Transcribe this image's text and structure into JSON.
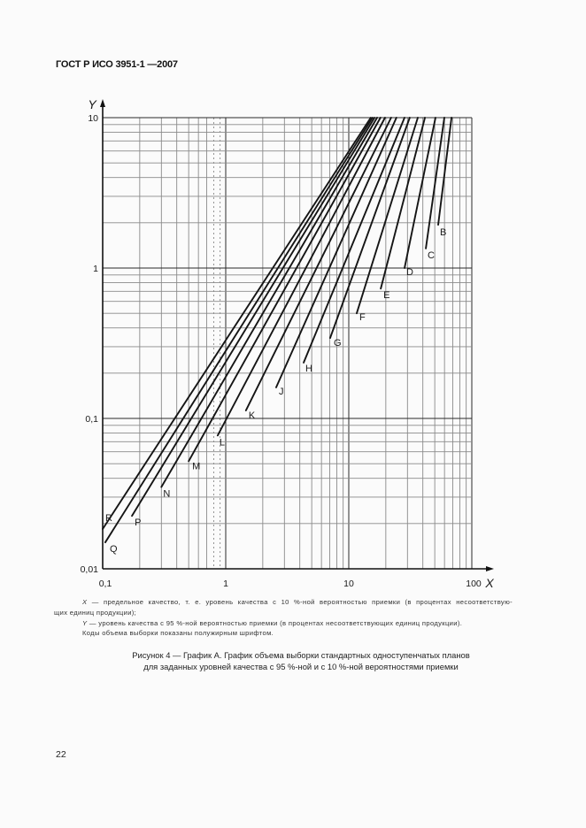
{
  "header": {
    "title": "ГОСТ Р ИСО 3951-1 —2007"
  },
  "notes": {
    "line1": {
      "var": "X",
      "text": " — предельное качество, т. е. уровень качества с 10 %-ной вероятностью приемки (в процентах несоответствую-"
    },
    "line2": {
      "text": "щих единиц продукции);"
    },
    "line3": {
      "var": "Y",
      "text": " — уровень качества с 95 %-ной вероятностью приемки (в процентах несоответствующих единиц продукции)."
    },
    "line4": {
      "text": "Коды объема выборки показаны полужирным шрифтом."
    }
  },
  "caption": {
    "line1": "Рисунок 4 — График А. График объема выборки стандартных одноступенчатых планов",
    "line2": "для заданных уровней качества с 95 %-ной и с 10 %-ной вероятностями приемки"
  },
  "page_number": "22",
  "colors": {
    "line": "#151515",
    "grid_major": "#2a2a2a",
    "grid_minor": "#8a8a8a",
    "axis": "#111111",
    "text": "#1a1a1a"
  },
  "chart_data": {
    "type": "line",
    "title": "",
    "xlabel": "X",
    "ylabel": "Y",
    "xscale": "log",
    "yscale": "log",
    "xlim": [
      0.1,
      100
    ],
    "ylim": [
      0.01,
      10
    ],
    "xticks": [
      0.1,
      1,
      10,
      100
    ],
    "xtick_labels": [
      "0,1",
      "1",
      "10",
      "100"
    ],
    "yticks": [
      0.01,
      0.1,
      1,
      10
    ],
    "ytick_labels": [
      "0,01",
      "0,1",
      "1",
      "10"
    ],
    "grid": true,
    "legend": "inline letter labels at the lower end of each line",
    "series": [
      {
        "name": "R",
        "x": [
          0.1,
          15.1
        ],
        "y": [
          0.0184,
          10
        ],
        "label_dx": 3,
        "label_dy": -13
      },
      {
        "name": "Q",
        "x": [
          0.105,
          15.6
        ],
        "y": [
          0.015,
          10
        ],
        "label_dx": 5,
        "label_dy": 7
      },
      {
        "name": "P",
        "x": [
          0.173,
          16.2
        ],
        "y": [
          0.0225,
          10
        ],
        "label_dx": 3,
        "label_dy": 7
      },
      {
        "name": "N",
        "x": [
          0.3,
          17.0
        ],
        "y": [
          0.035,
          10
        ],
        "label_dx": 2,
        "label_dy": 7
      },
      {
        "name": "M",
        "x": [
          0.5,
          18.1
        ],
        "y": [
          0.052,
          10
        ],
        "label_dx": 4,
        "label_dy": 5
      },
      {
        "name": "L",
        "x": [
          0.86,
          19.7
        ],
        "y": [
          0.077,
          10
        ],
        "label_dx": 2,
        "label_dy": 7
      },
      {
        "name": "K",
        "x": [
          1.46,
          22.1
        ],
        "y": [
          0.113,
          10
        ],
        "label_dx": 3,
        "label_dy": 5
      },
      {
        "name": "J",
        "x": [
          2.57,
          24.4
        ],
        "y": [
          0.161,
          10
        ],
        "label_dx": 3,
        "label_dy": 4
      },
      {
        "name": "H",
        "x": [
          4.3,
          28.4
        ],
        "y": [
          0.235,
          10
        ],
        "label_dx": 2,
        "label_dy": 6
      },
      {
        "name": "G",
        "x": [
          7.06,
          31.3
        ],
        "y": [
          0.343,
          10
        ],
        "label_dx": 4,
        "label_dy": 5
      },
      {
        "name": "F",
        "x": [
          11.6,
          36.4
        ],
        "y": [
          0.5,
          10
        ],
        "label_dx": 3,
        "label_dy": 4
      },
      {
        "name": "E",
        "x": [
          18.2,
          41.6
        ],
        "y": [
          0.73,
          10
        ],
        "label_dx": 3,
        "label_dy": 7
      },
      {
        "name": "D",
        "x": [
          28.4,
          50.7
        ],
        "y": [
          1.0,
          10
        ],
        "label_dx": 2,
        "label_dy": 4
      },
      {
        "name": "C",
        "x": [
          42.3,
          59.8
        ],
        "y": [
          1.35,
          10
        ],
        "label_dx": 2,
        "label_dy": 7
      },
      {
        "name": "B",
        "x": [
          53.3,
          68.4
        ],
        "y": [
          1.94,
          10
        ],
        "label_dx": 2,
        "label_dy": 8
      }
    ]
  }
}
